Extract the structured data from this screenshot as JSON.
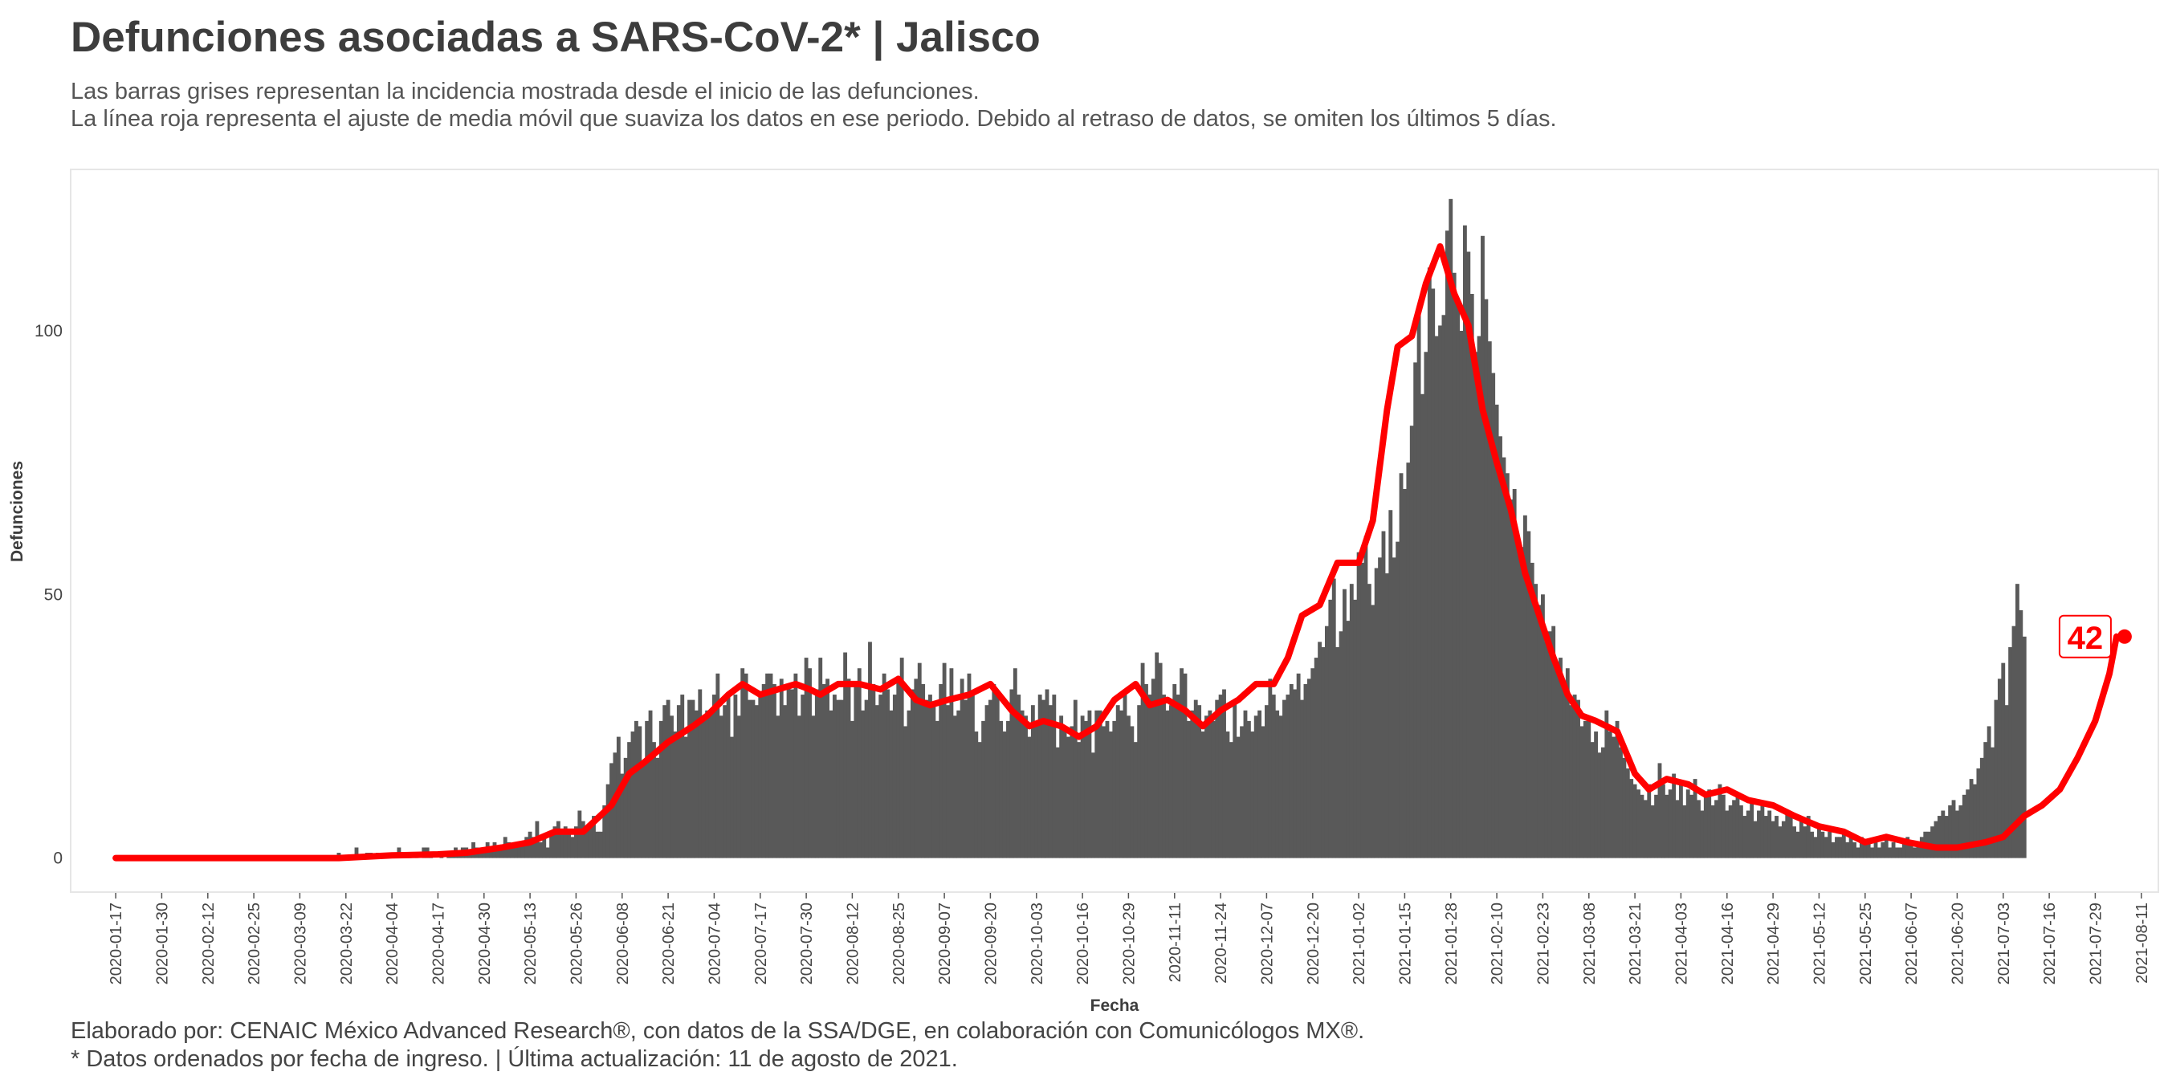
{
  "title": "Defunciones asociadas a SARS-CoV-2* | Jalisco",
  "subtitle_1": "Las barras grises representan la incidencia mostrada desde el inicio de las defunciones.",
  "subtitle_2": "La línea roja representa el ajuste de media móvil que suaviza los datos en ese periodo. Debido al retraso de datos, se omiten los últimos 5 días.",
  "caption_1": "Elaborado por: CENAIC México Advanced Research®, con datos de la SSA/DGE, en colaboración con Comunicólogos MX®.",
  "caption_2": "* Datos ordenados por fecha de ingreso. | Última actualización: 11 de agosto de 2021.",
  "chart_data": {
    "type": "bar",
    "xlabel": "Fecha",
    "ylabel": "Defunciones",
    "x_tick_labels": [
      "2020-01-17",
      "2020-01-30",
      "2020-02-12",
      "2020-02-25",
      "2020-03-09",
      "2020-03-22",
      "2020-04-04",
      "2020-04-17",
      "2020-04-30",
      "2020-05-13",
      "2020-05-26",
      "2020-06-08",
      "2020-06-21",
      "2020-07-04",
      "2020-07-17",
      "2020-07-30",
      "2020-08-12",
      "2020-08-25",
      "2020-09-07",
      "2020-09-20",
      "2020-10-03",
      "2020-10-16",
      "2020-10-29",
      "2020-11-11",
      "2020-11-24",
      "2020-12-07",
      "2020-12-20",
      "2021-01-02",
      "2021-01-15",
      "2021-01-28",
      "2021-02-10",
      "2021-02-23",
      "2021-03-08",
      "2021-03-21",
      "2021-04-03",
      "2021-04-16",
      "2021-04-29",
      "2021-05-12",
      "2021-05-25",
      "2021-06-07",
      "2021-06-20",
      "2021-07-03",
      "2021-07-16",
      "2021-07-29",
      "2021-08-11"
    ],
    "y_ticks": [
      0,
      50,
      100
    ],
    "ylim": [
      -6,
      130
    ],
    "xlim": [
      "2020-01-07",
      "2021-08-14"
    ],
    "grid": false,
    "colors": {
      "bars": "#595959",
      "line": "#ff0000",
      "label_text": "#ff0000"
    },
    "series": [
      {
        "name": "Defunciones diarias",
        "kind": "bar",
        "start_date": "2020-03-20",
        "values": [
          1,
          0,
          0,
          0,
          0,
          2,
          0,
          0,
          1,
          1,
          0,
          1,
          0,
          0,
          0,
          1,
          1,
          2,
          0,
          0,
          1,
          0,
          1,
          0,
          2,
          2,
          1,
          0,
          0,
          1,
          0,
          1,
          1,
          2,
          1,
          2,
          2,
          1,
          3,
          2,
          1,
          2,
          3,
          2,
          3,
          2,
          2,
          4,
          3,
          2,
          3,
          3,
          3,
          4,
          5,
          4,
          7,
          3,
          4,
          2,
          5,
          6,
          7,
          5,
          6,
          5,
          4,
          6,
          9,
          7,
          6,
          6,
          8,
          5,
          5,
          10,
          14,
          18,
          20,
          23,
          16,
          19,
          22,
          24,
          26,
          25,
          18,
          26,
          28,
          22,
          19,
          26,
          29,
          30,
          27,
          24,
          29,
          31,
          23,
          30,
          30,
          28,
          32,
          26,
          28,
          28,
          31,
          35,
          27,
          29,
          31,
          23,
          31,
          27,
          36,
          35,
          30,
          30,
          29,
          31,
          33,
          35,
          35,
          33,
          27,
          34,
          29,
          33,
          32,
          35,
          27,
          31,
          38,
          36,
          27,
          32,
          38,
          33,
          34,
          28,
          31,
          30,
          30,
          39,
          34,
          26,
          33,
          36,
          28,
          30,
          41,
          33,
          29,
          31,
          35,
          32,
          28,
          31,
          34,
          38,
          25,
          28,
          32,
          34,
          37,
          33,
          30,
          31,
          29,
          26,
          33,
          37,
          29,
          36,
          27,
          28,
          34,
          30,
          35,
          31,
          24,
          22,
          26,
          29,
          30,
          33,
          31,
          26,
          24,
          26,
          32,
          36,
          31,
          28,
          27,
          23,
          29,
          26,
          31,
          30,
          32,
          29,
          31,
          21,
          27,
          25,
          23,
          25,
          30,
          22,
          27,
          26,
          28,
          20,
          28,
          28,
          25,
          26,
          24,
          26,
          29,
          28,
          32,
          27,
          25,
          22,
          29,
          37,
          33,
          31,
          34,
          39,
          37,
          31,
          28,
          29,
          33,
          31,
          36,
          35,
          26,
          28,
          30,
          29,
          24,
          27,
          28,
          26,
          30,
          31,
          32,
          24,
          22,
          30,
          23,
          25,
          28,
          26,
          24,
          27,
          28,
          25,
          29,
          34,
          31,
          28,
          27,
          30,
          31,
          33,
          32,
          35,
          30,
          33,
          34,
          36,
          38,
          41,
          40,
          44,
          49,
          53,
          40,
          43,
          51,
          45,
          52,
          49,
          58,
          56,
          61,
          52,
          48,
          55,
          57,
          62,
          54,
          66,
          57,
          60,
          73,
          70,
          75,
          82,
          94,
          104,
          88,
          96,
          112,
          108,
          99,
          101,
          103,
          119,
          125,
          111,
          106,
          100,
          120,
          115,
          107,
          96,
          99,
          118,
          106,
          98,
          92,
          86,
          80,
          76,
          73,
          68,
          70,
          60,
          59,
          65,
          62,
          56,
          52,
          48,
          50,
          41,
          43,
          44,
          36,
          38,
          33,
          36,
          29,
          31,
          30,
          25,
          26,
          27,
          22,
          24,
          20,
          21,
          28,
          24,
          23,
          26,
          21,
          19,
          17,
          15,
          14,
          13,
          12,
          11,
          14,
          10,
          12,
          18,
          14,
          12,
          13,
          16,
          11,
          14,
          10,
          13,
          12,
          15,
          11,
          9,
          12,
          13,
          10,
          11,
          14,
          12,
          9,
          10,
          11,
          12,
          10,
          8,
          9,
          11,
          7,
          9,
          10,
          8,
          9,
          7,
          8,
          6,
          7,
          9,
          8,
          6,
          5,
          7,
          6,
          8,
          5,
          4,
          6,
          5,
          4,
          5,
          3,
          4,
          4,
          5,
          3,
          4,
          3,
          2,
          4,
          3,
          3,
          2,
          3,
          2,
          3,
          4,
          2,
          3,
          2,
          2,
          3,
          4,
          3,
          2,
          3,
          4,
          5,
          5,
          6,
          7,
          8,
          9,
          8,
          10,
          11,
          9,
          10,
          12,
          13,
          15,
          14,
          17,
          19,
          22,
          25,
          21,
          30,
          34,
          37,
          29,
          40,
          44,
          52,
          47,
          42
        ]
      },
      {
        "name": "Media móvil",
        "kind": "line",
        "points": [
          [
            "2020-01-17",
            0
          ],
          [
            "2020-03-20",
            0
          ],
          [
            "2020-04-04",
            0.5
          ],
          [
            "2020-04-17",
            0.7
          ],
          [
            "2020-04-25",
            1
          ],
          [
            "2020-05-05",
            2
          ],
          [
            "2020-05-13",
            3
          ],
          [
            "2020-05-20",
            5
          ],
          [
            "2020-05-28",
            5
          ],
          [
            "2020-06-05",
            10
          ],
          [
            "2020-06-10",
            16
          ],
          [
            "2020-06-14",
            18
          ],
          [
            "2020-06-21",
            22
          ],
          [
            "2020-06-28",
            25
          ],
          [
            "2020-07-02",
            27
          ],
          [
            "2020-07-08",
            31
          ],
          [
            "2020-07-12",
            33
          ],
          [
            "2020-07-17",
            31
          ],
          [
            "2020-07-22",
            32
          ],
          [
            "2020-07-27",
            33
          ],
          [
            "2020-07-31",
            32
          ],
          [
            "2020-08-03",
            31
          ],
          [
            "2020-08-08",
            33
          ],
          [
            "2020-08-14",
            33
          ],
          [
            "2020-08-20",
            32
          ],
          [
            "2020-08-25",
            34
          ],
          [
            "2020-08-30",
            30
          ],
          [
            "2020-09-03",
            29
          ],
          [
            "2020-09-08",
            30
          ],
          [
            "2020-09-14",
            31
          ],
          [
            "2020-09-20",
            33
          ],
          [
            "2020-09-26",
            28
          ],
          [
            "2020-10-01",
            25
          ],
          [
            "2020-10-05",
            26
          ],
          [
            "2020-10-10",
            25
          ],
          [
            "2020-10-15",
            23
          ],
          [
            "2020-10-20",
            25
          ],
          [
            "2020-10-25",
            30
          ],
          [
            "2020-10-31",
            33
          ],
          [
            "2020-11-04",
            29
          ],
          [
            "2020-11-09",
            30
          ],
          [
            "2020-11-14",
            28
          ],
          [
            "2020-11-19",
            25
          ],
          [
            "2020-11-24",
            28
          ],
          [
            "2020-11-29",
            30
          ],
          [
            "2020-12-04",
            33
          ],
          [
            "2020-12-09",
            33
          ],
          [
            "2020-12-13",
            38
          ],
          [
            "2020-12-17",
            46
          ],
          [
            "2020-12-22",
            48
          ],
          [
            "2020-12-27",
            56
          ],
          [
            "2021-01-02",
            56
          ],
          [
            "2021-01-06",
            64
          ],
          [
            "2021-01-10",
            85
          ],
          [
            "2021-01-13",
            97
          ],
          [
            "2021-01-17",
            99
          ],
          [
            "2021-01-21",
            109
          ],
          [
            "2021-01-25",
            116
          ],
          [
            "2021-01-29",
            107
          ],
          [
            "2021-02-02",
            101
          ],
          [
            "2021-02-06",
            85
          ],
          [
            "2021-02-10",
            75
          ],
          [
            "2021-02-14",
            66
          ],
          [
            "2021-02-18",
            54
          ],
          [
            "2021-02-22",
            46
          ],
          [
            "2021-02-26",
            38
          ],
          [
            "2021-03-02",
            31
          ],
          [
            "2021-03-06",
            27
          ],
          [
            "2021-03-10",
            26
          ],
          [
            "2021-03-16",
            24
          ],
          [
            "2021-03-21",
            16
          ],
          [
            "2021-03-25",
            13
          ],
          [
            "2021-03-30",
            15
          ],
          [
            "2021-04-05",
            14
          ],
          [
            "2021-04-10",
            12
          ],
          [
            "2021-04-16",
            13
          ],
          [
            "2021-04-22",
            11
          ],
          [
            "2021-04-29",
            10
          ],
          [
            "2021-05-05",
            8
          ],
          [
            "2021-05-12",
            6
          ],
          [
            "2021-05-19",
            5
          ],
          [
            "2021-05-25",
            3
          ],
          [
            "2021-05-31",
            4
          ],
          [
            "2021-06-06",
            3
          ],
          [
            "2021-06-14",
            2
          ],
          [
            "2021-06-20",
            2
          ],
          [
            "2021-06-28",
            3
          ],
          [
            "2021-07-03",
            4
          ],
          [
            "2021-07-09",
            8
          ],
          [
            "2021-07-14",
            10
          ],
          [
            "2021-07-19",
            13
          ],
          [
            "2021-07-24",
            19
          ],
          [
            "2021-07-29",
            26
          ],
          [
            "2021-08-02",
            35
          ],
          [
            "2021-08-04",
            42
          ]
        ],
        "end_label": "42"
      }
    ]
  }
}
